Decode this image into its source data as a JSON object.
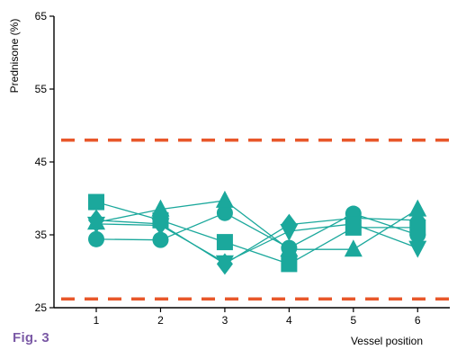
{
  "chart_data": {
    "type": "line",
    "x": [
      1,
      2,
      3,
      4,
      5,
      6
    ],
    "xlabel": "Vessel position",
    "ylabel": "Prednisone (%)",
    "ylim": [
      25,
      65
    ],
    "xlim": [
      0.3,
      6.5
    ],
    "yticks": [
      25,
      35,
      45,
      55,
      65
    ],
    "xticks": [
      1,
      2,
      3,
      4,
      5,
      6
    ],
    "grid": false,
    "series": [
      {
        "marker": "square",
        "values": [
          39.5,
          37.0,
          34.0,
          31.0,
          36.0,
          36.0
        ]
      },
      {
        "marker": "circle",
        "values": [
          34.4,
          34.3,
          38.0,
          33.2,
          37.9,
          35.0
        ]
      },
      {
        "marker": "triangle-up",
        "values": [
          36.7,
          38.5,
          39.7,
          33.0,
          33.0,
          38.5
        ]
      },
      {
        "marker": "diamond",
        "values": [
          37.0,
          36.5,
          31.0,
          36.4,
          37.3,
          37.0
        ]
      },
      {
        "marker": "triangle-down",
        "values": [
          36.5,
          36.3,
          31.2,
          35.5,
          36.5,
          33.2
        ]
      }
    ],
    "reference_lines": [
      {
        "y": 48
      },
      {
        "y": 26.2
      }
    ],
    "colors": {
      "series": "#1ba89c",
      "reference": "#e8572a",
      "axis": "#000000"
    }
  },
  "caption": "Fig. 3"
}
